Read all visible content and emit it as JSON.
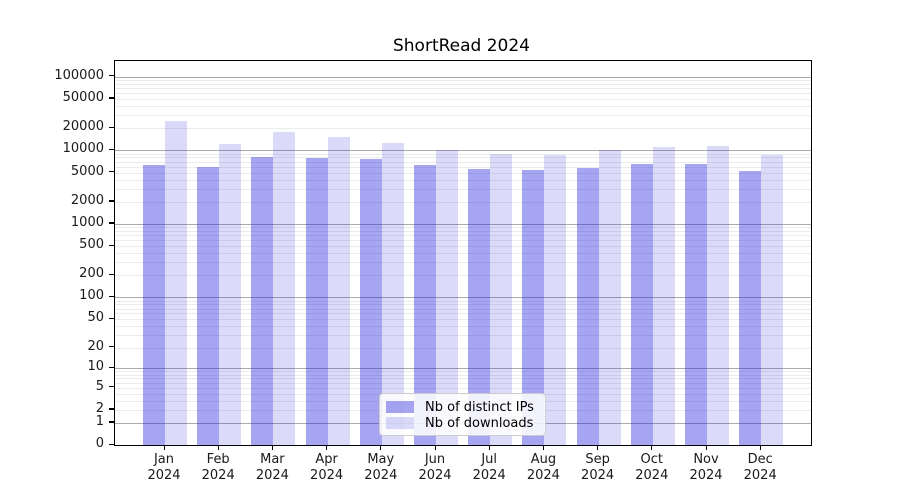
{
  "title": "ShortRead 2024",
  "legend": {
    "items": [
      {
        "label": "Nb of distinct IPs",
        "color": "rgba(30,30,220,0.40)"
      },
      {
        "label": "Nb of downloads",
        "color": "rgba(30,30,220,0.16)"
      }
    ],
    "position": "lower-center-inside"
  },
  "colors": {
    "bar_ips": "rgba(30,30,220,0.40)",
    "bar_downloads": "rgba(30,30,220,0.16)",
    "grid_major": "#ababab",
    "grid_minor": "#ebebeb",
    "axis": "#000000",
    "text": "#1a1a1a",
    "legend_border": "#cccccc"
  },
  "chart_data": {
    "type": "bar",
    "title": "ShortRead 2024",
    "categories": [
      "Jan 2024",
      "Feb 2024",
      "Mar 2024",
      "Apr 2024",
      "May 2024",
      "Jun 2024",
      "Jul 2024",
      "Aug 2024",
      "Sep 2024",
      "Oct 2024",
      "Nov 2024",
      "Dec 2024"
    ],
    "category_month": [
      "Jan",
      "Feb",
      "Mar",
      "Apr",
      "May",
      "Jun",
      "Jul",
      "Aug",
      "Sep",
      "Oct",
      "Nov",
      "Dec"
    ],
    "category_year": [
      "2024",
      "2024",
      "2024",
      "2024",
      "2024",
      "2024",
      "2024",
      "2024",
      "2024",
      "2024",
      "2024",
      "2024"
    ],
    "series": [
      {
        "name": "Nb of distinct IPs",
        "values": [
          6300,
          6000,
          8200,
          7950,
          7550,
          6300,
          5600,
          5400,
          5700,
          6500,
          6500,
          5250
        ]
      },
      {
        "name": "Nb of downloads",
        "values": [
          25000,
          12200,
          17900,
          15200,
          12700,
          10100,
          8900,
          8700,
          10000,
          11200,
          11400,
          8600
        ]
      }
    ],
    "xlabel": "",
    "ylabel": "",
    "y_scale": "log1p",
    "y_ticks": [
      0,
      1,
      2,
      5,
      10,
      20,
      50,
      100,
      200,
      500,
      1000,
      2000,
      5000,
      10000,
      20000,
      50000,
      100000
    ],
    "y_minor_gridlines_per_decade": [
      2,
      3,
      4,
      5,
      6,
      7,
      8,
      9
    ],
    "ylim": [
      0,
      163000
    ],
    "grid": "horizontal-major-and-minor",
    "legend_position": "lower-center-inside"
  }
}
